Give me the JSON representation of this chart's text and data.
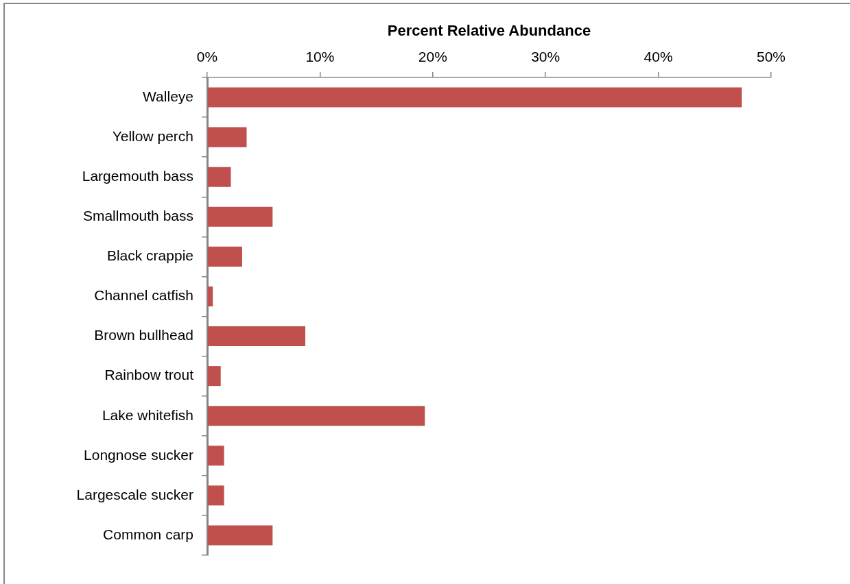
{
  "chart_data": {
    "type": "bar",
    "orientation": "horizontal",
    "xlabel": "Percent Relative Abundance",
    "categories": [
      "Walleye",
      "Yellow perch",
      "Largemouth bass",
      "Smallmouth bass",
      "Black crappie",
      "Channel catfish",
      "Brown bullhead",
      "Rainbow trout",
      "Lake whitefish",
      "Longnose sucker",
      "Largescale sucker",
      "Common carp"
    ],
    "values": [
      47.4,
      3.5,
      2.1,
      5.8,
      3.1,
      0.5,
      8.7,
      1.2,
      19.3,
      1.5,
      1.5,
      5.8
    ],
    "color": "#c0504d",
    "xlim": [
      0,
      50
    ],
    "xticks": [
      {
        "value": 0,
        "label": "0%"
      },
      {
        "value": 10,
        "label": "10%"
      },
      {
        "value": 20,
        "label": "20%"
      },
      {
        "value": 30,
        "label": "30%"
      },
      {
        "value": 40,
        "label": "40%"
      },
      {
        "value": 50,
        "label": "50%"
      }
    ]
  }
}
